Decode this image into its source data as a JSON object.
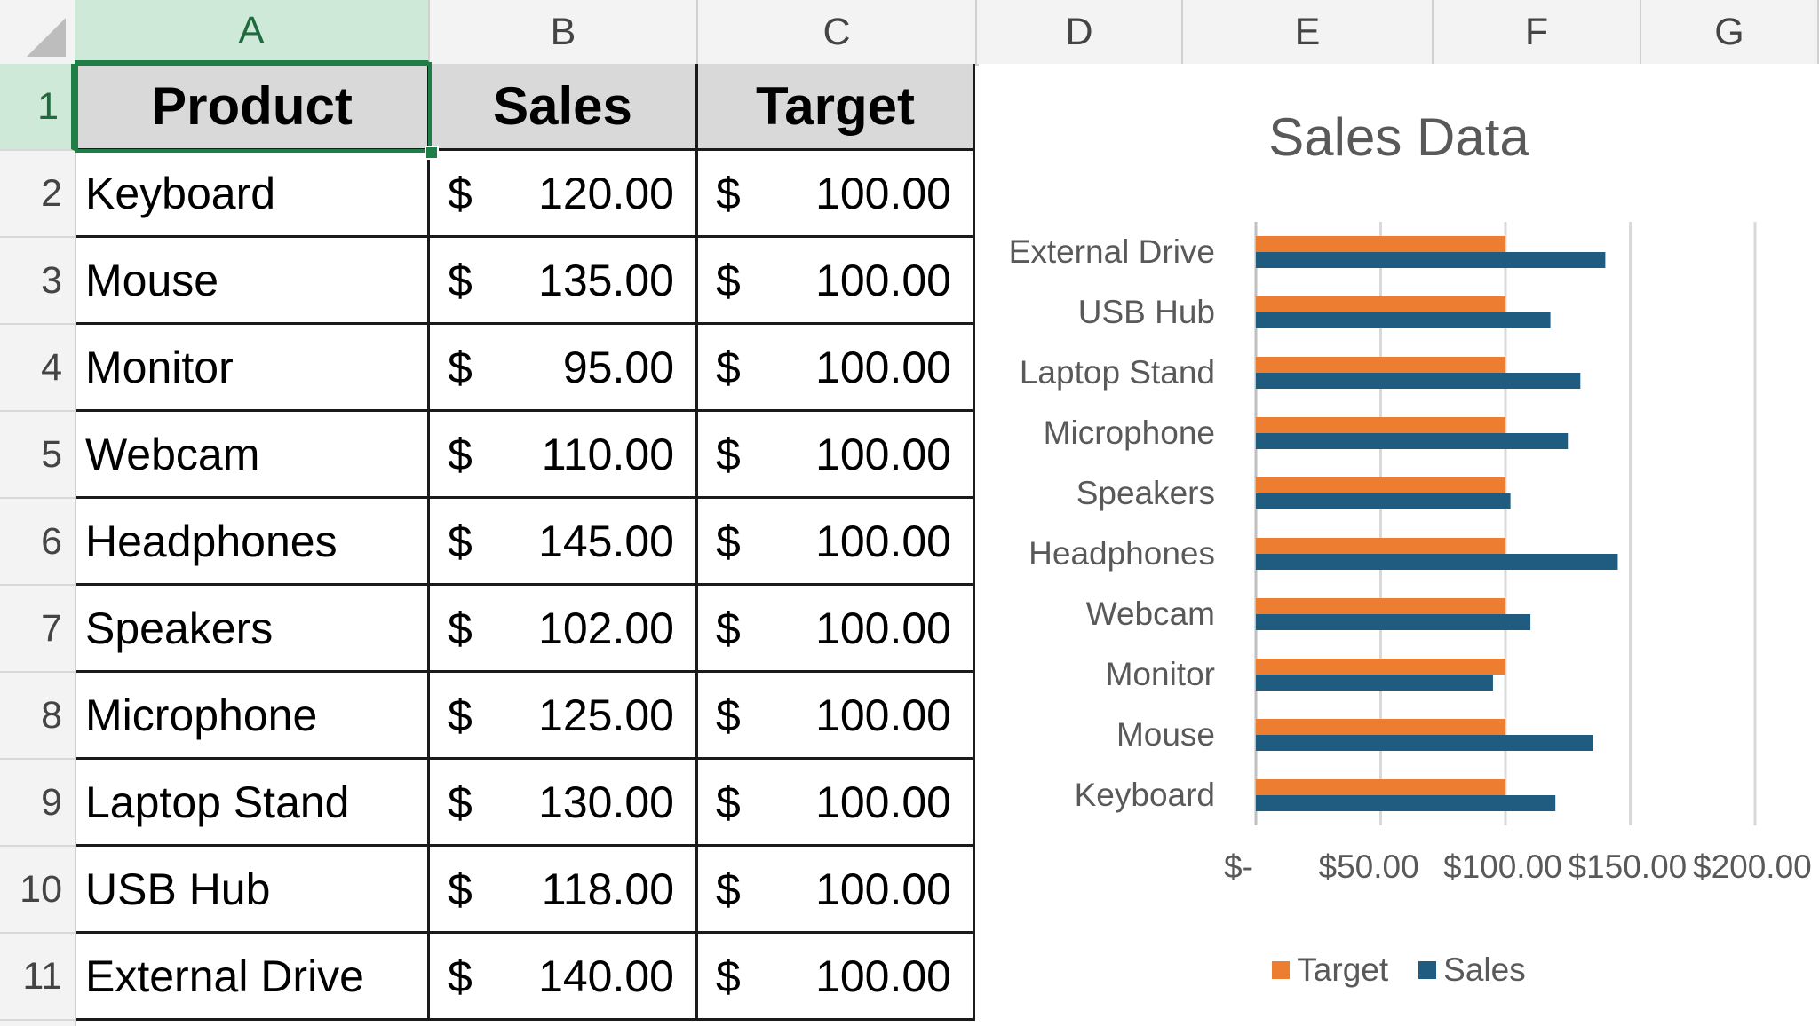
{
  "columns": [
    "A",
    "B",
    "C",
    "D",
    "E",
    "F",
    "G"
  ],
  "rows": [
    "1",
    "2",
    "3",
    "4",
    "5",
    "6",
    "7",
    "8",
    "9",
    "10",
    "11"
  ],
  "table": {
    "headers": [
      "Product",
      "Sales",
      "Target"
    ],
    "currency_symbol": "$",
    "rows": [
      {
        "product": "Keyboard",
        "sales": "120.00",
        "target": "100.00"
      },
      {
        "product": "Mouse",
        "sales": "135.00",
        "target": "100.00"
      },
      {
        "product": "Monitor",
        "sales": "95.00",
        "target": "100.00"
      },
      {
        "product": "Webcam",
        "sales": "110.00",
        "target": "100.00"
      },
      {
        "product": "Headphones",
        "sales": "145.00",
        "target": "100.00"
      },
      {
        "product": "Speakers",
        "sales": "102.00",
        "target": "100.00"
      },
      {
        "product": "Microphone",
        "sales": "125.00",
        "target": "100.00"
      },
      {
        "product": "Laptop Stand",
        "sales": "130.00",
        "target": "100.00"
      },
      {
        "product": "USB Hub",
        "sales": "118.00",
        "target": "100.00"
      },
      {
        "product": "External Drive",
        "sales": "140.00",
        "target": "100.00"
      }
    ]
  },
  "colors": {
    "target": "#ed7d31",
    "sales": "#1f5c80",
    "selection": "#1e7e45"
  },
  "chart_data": {
    "type": "bar",
    "orientation": "horizontal",
    "title": "Sales Data",
    "categories": [
      "Keyboard",
      "Mouse",
      "Monitor",
      "Webcam",
      "Headphones",
      "Speakers",
      "Microphone",
      "Laptop Stand",
      "USB Hub",
      "External Drive"
    ],
    "series": [
      {
        "name": "Target",
        "values": [
          100,
          100,
          100,
          100,
          100,
          100,
          100,
          100,
          100,
          100
        ]
      },
      {
        "name": "Sales",
        "values": [
          120,
          135,
          95,
          110,
          145,
          102,
          125,
          130,
          118,
          140
        ]
      }
    ],
    "xlim": [
      0,
      200
    ],
    "x_ticks": [
      0,
      50,
      100,
      150,
      200
    ],
    "x_tick_labels": [
      "$-",
      "$50.00",
      "$100.00",
      "$150.00",
      "$200.00"
    ],
    "grid": true,
    "legend": "bottom",
    "legend_labels": [
      "Target",
      "Sales"
    ]
  }
}
